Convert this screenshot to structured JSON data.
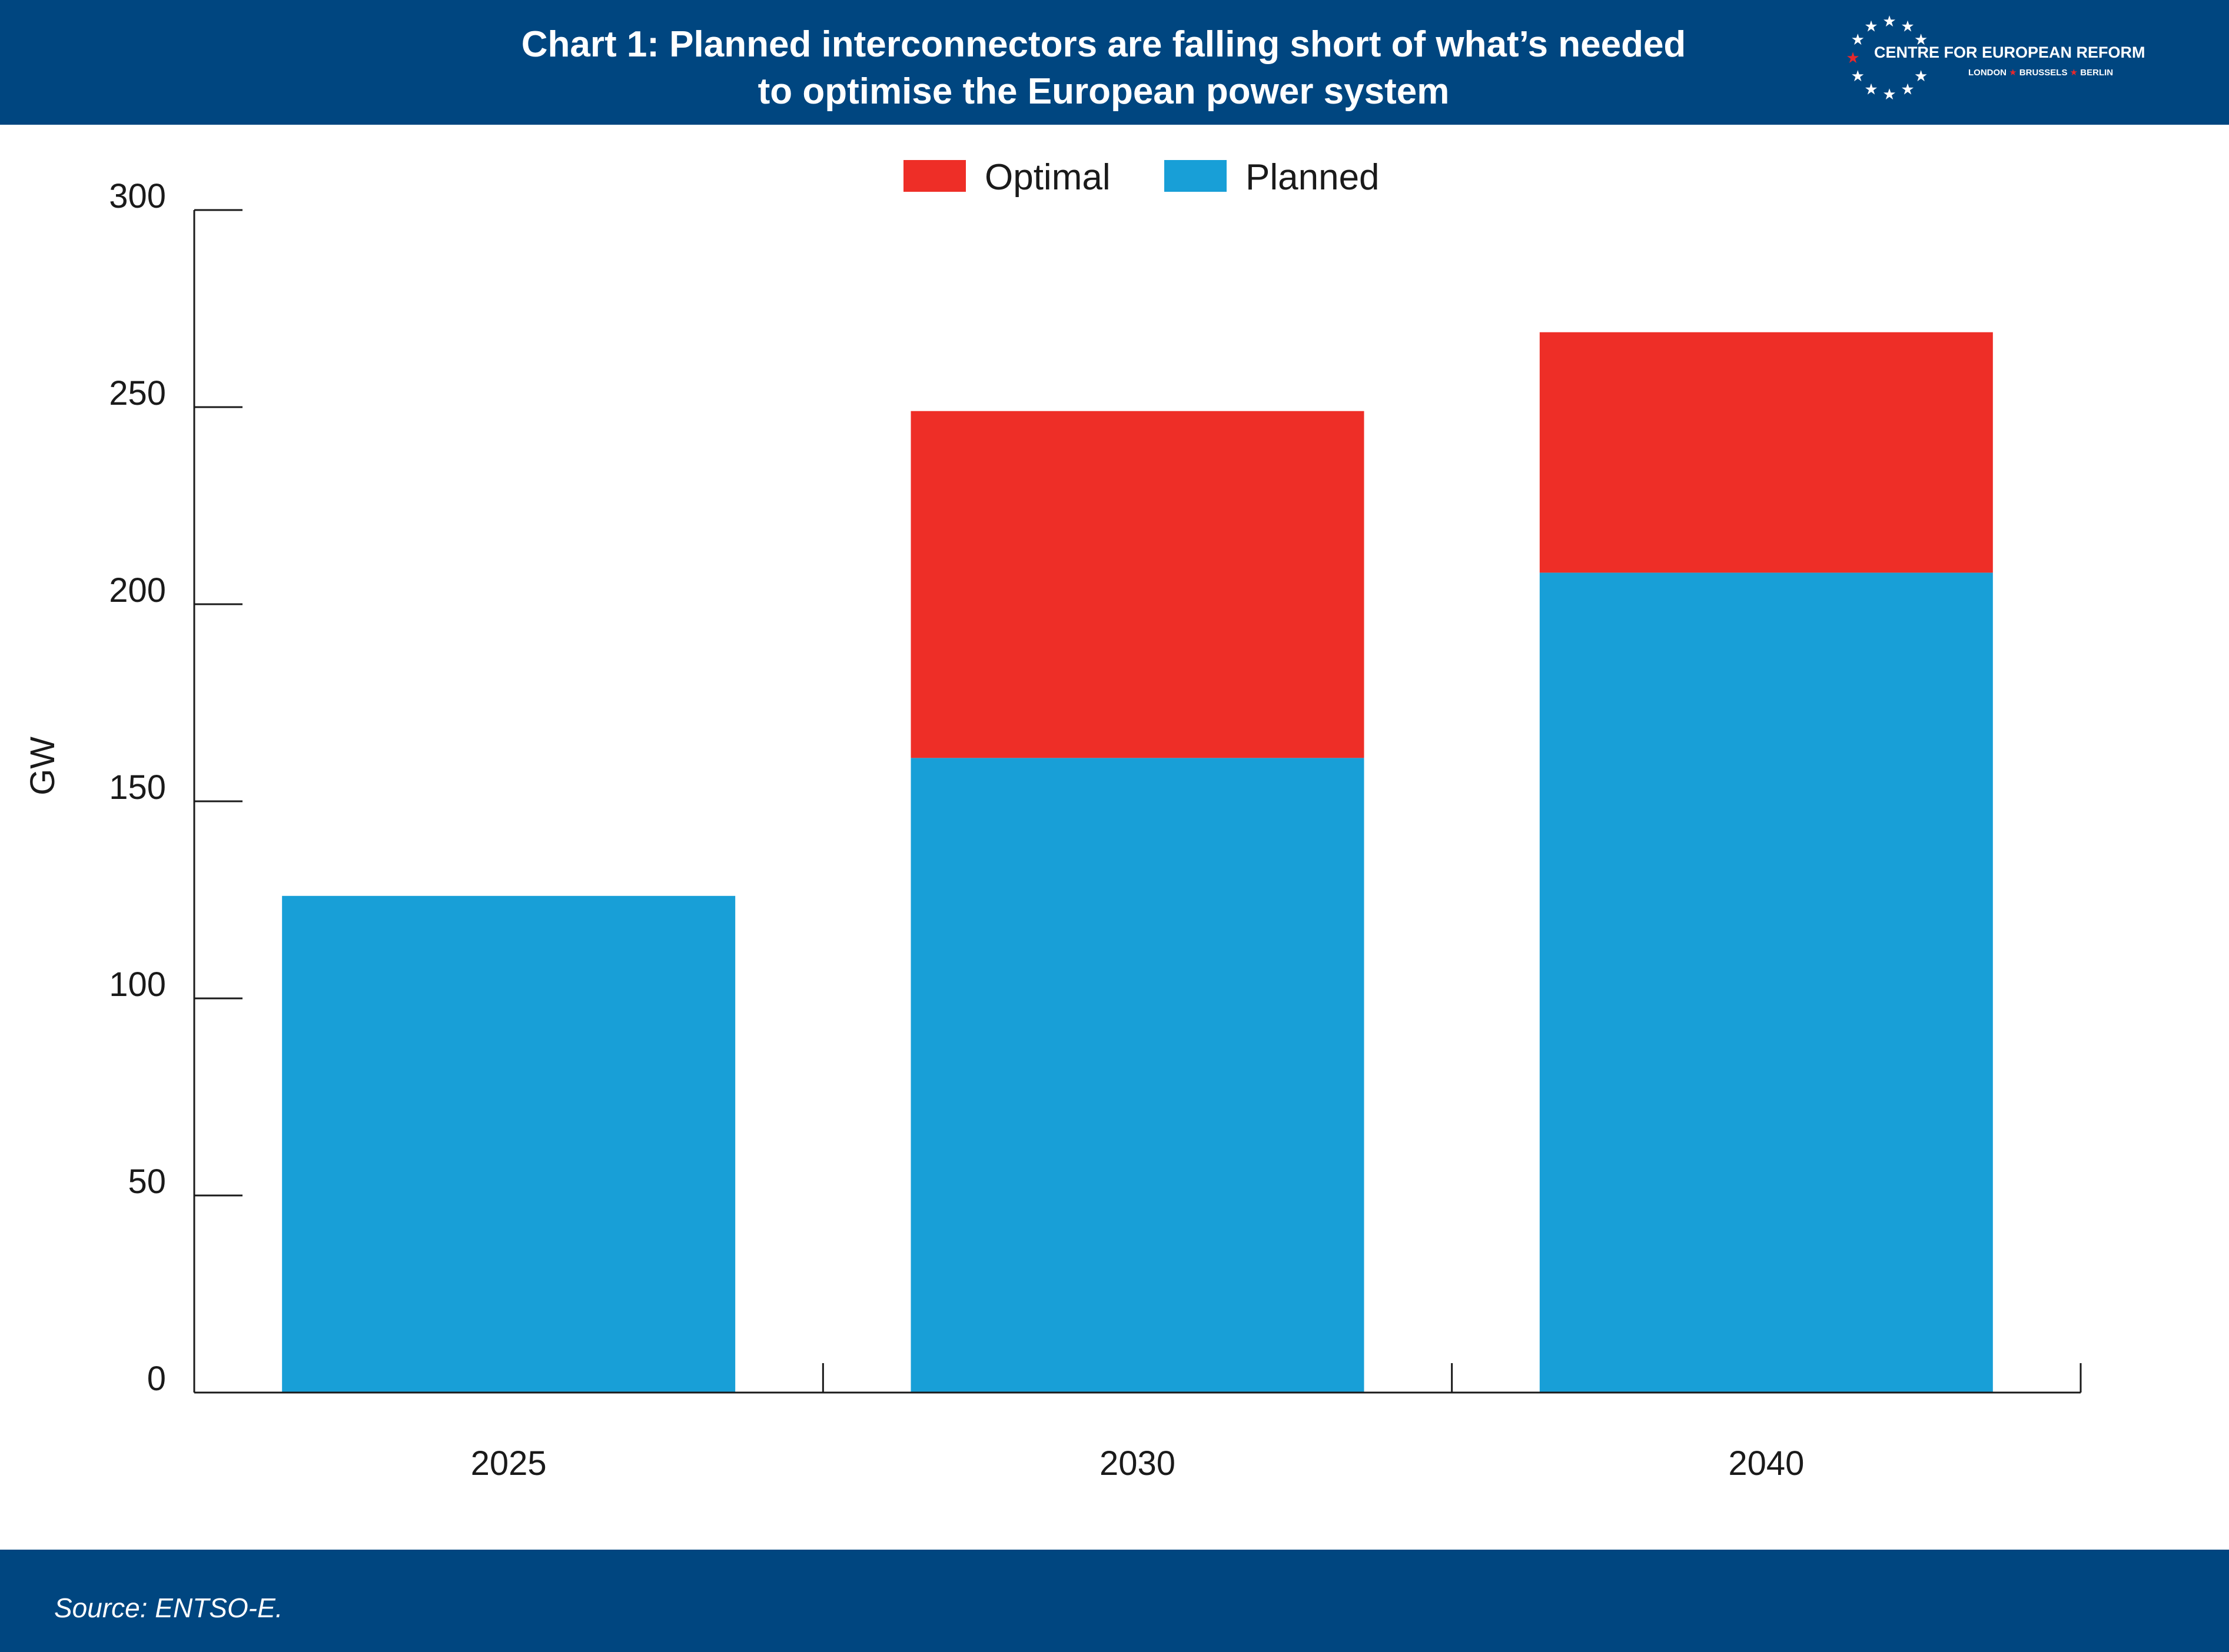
{
  "header": {
    "title_line1": "Chart 1: Planned interconnectors are falling short of what’s needed",
    "title_line2": "to optimise the European power system",
    "logo_name": "CENTRE FOR EUROPEAN REFORM",
    "logo_cities": [
      "LONDON",
      "BRUSSELS",
      "BERLIN"
    ]
  },
  "footer": {
    "source": "Source: ENTSO-E."
  },
  "colors": {
    "header_bg": "#004680",
    "planned": "#189fd7",
    "optimal": "#ee2e27",
    "logo_star_red": "#e8282b"
  },
  "chart_data": {
    "type": "bar",
    "stacked": true,
    "categories": [
      "2025",
      "2030",
      "2040"
    ],
    "series": [
      {
        "name": "Planned",
        "values": [
          126,
          161,
          208
        ],
        "color": "#189fd7"
      },
      {
        "name": "Optimal",
        "values": [
          0,
          88,
          61
        ],
        "color": "#ee2e27"
      }
    ],
    "legend_order": [
      "Optimal",
      "Planned"
    ],
    "legend_position": "top-center",
    "ylabel": "GW",
    "ylim": [
      0,
      300
    ],
    "yticks": [
      0,
      50,
      100,
      150,
      200,
      250,
      300
    ],
    "grid": false
  }
}
